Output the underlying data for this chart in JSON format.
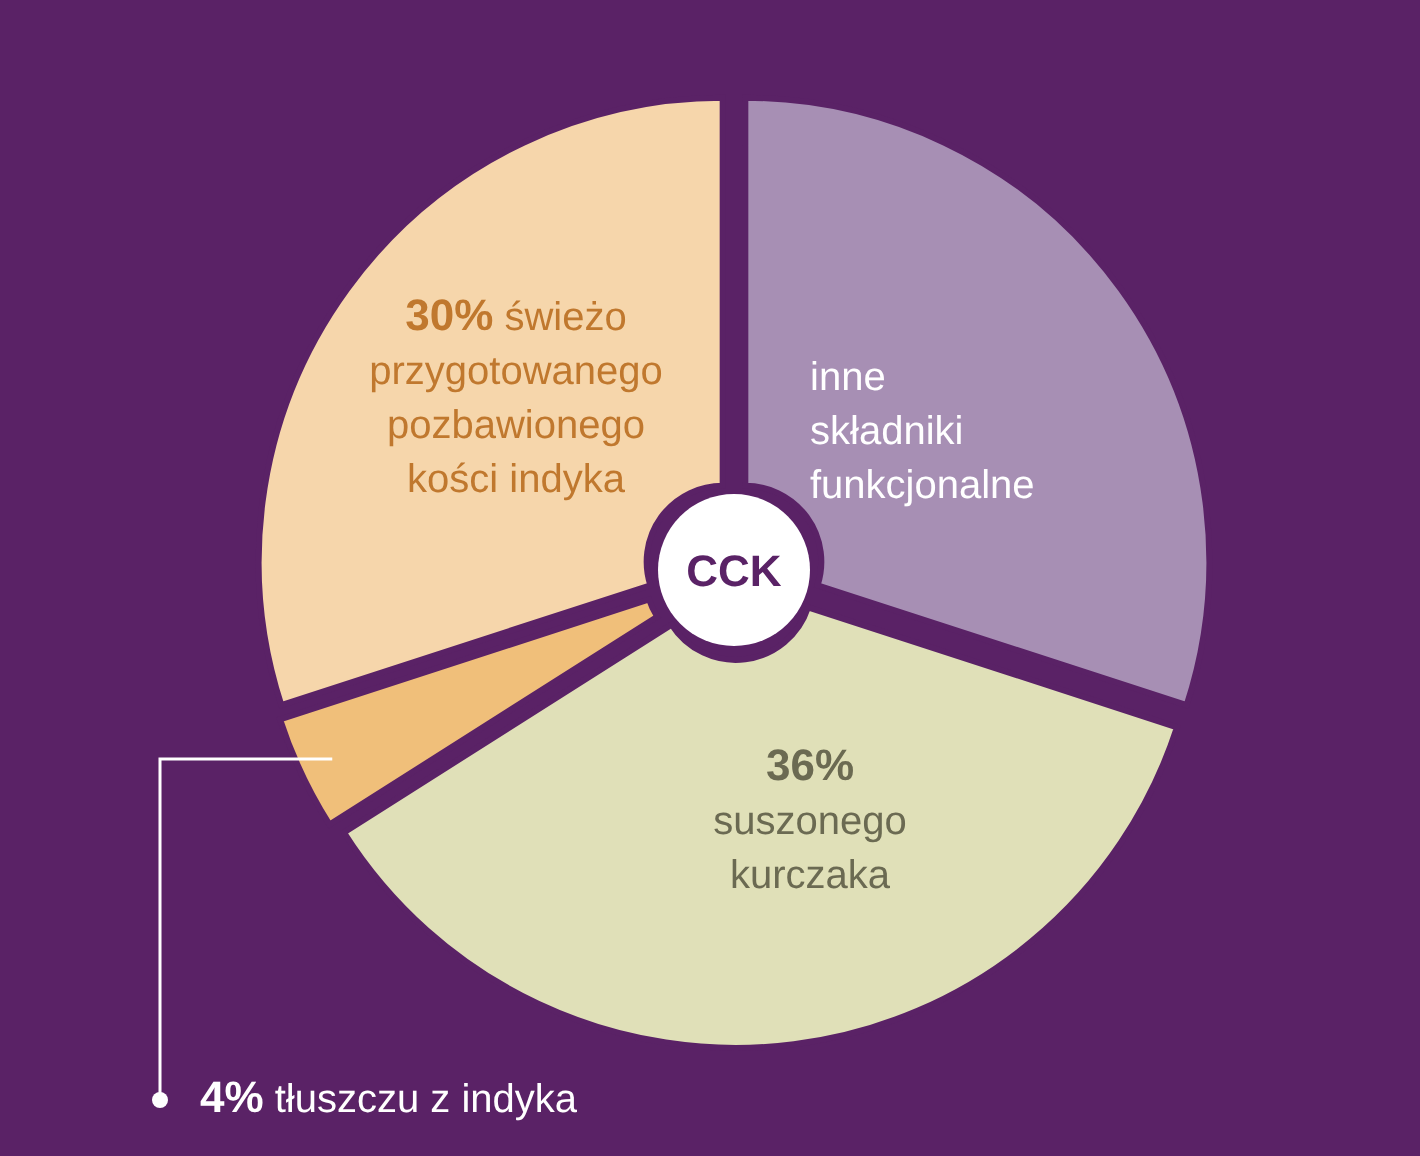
{
  "chart_data": {
    "type": "donut",
    "title": "CCK",
    "categories": [
      "inne składniki funkcjonalne",
      "suszonego kurczaka",
      "tłuszczu z indyka",
      "świeżo przygotowanego pozbawionego kości indyka"
    ],
    "values": [
      30,
      36,
      4,
      30
    ],
    "colors": [
      "#a78fb4",
      "#e0e0b8",
      "#f0bf7a",
      "#f6d6ab"
    ],
    "value_labels": [
      null,
      "36%",
      "4%",
      "30%"
    ]
  }
}
